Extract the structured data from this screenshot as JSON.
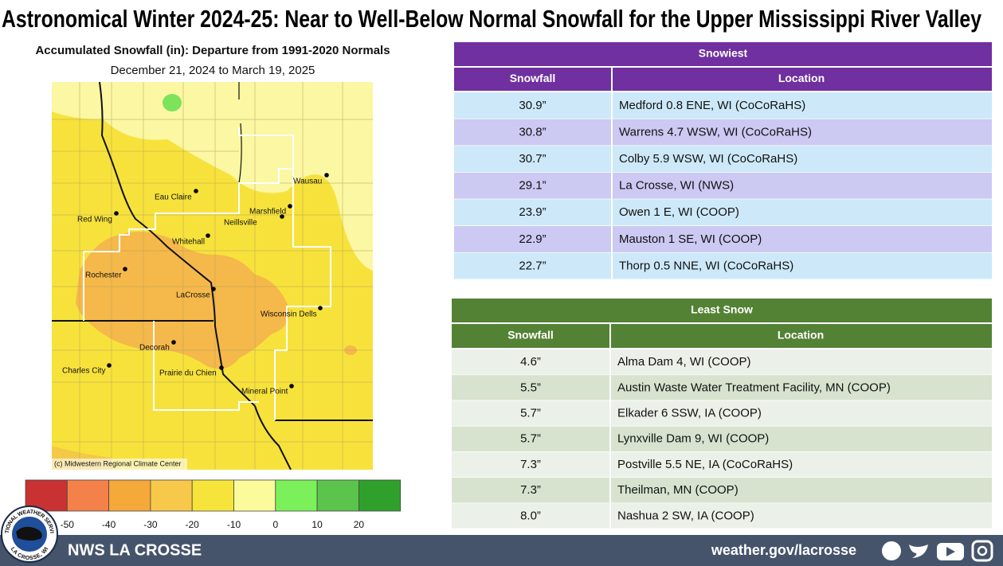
{
  "title": "Astronomical Winter 2024-25: Near to Well-Below Normal Snowfall for the Upper Mississippi River Valley",
  "map": {
    "title": "Accumulated Snowfall (in): Departure from 1991-2020 Normals",
    "subtitle": "December 21, 2024 to March 19, 2025",
    "credit": "(c) Midwestern Regional Climate Center",
    "cities": [
      "Eau Claire",
      "Wausau",
      "Red Wing",
      "Marshfield",
      "Neillsville",
      "Whitehall",
      "Rochester",
      "LaCrosse",
      "Wisconsin Dells",
      "Decorah",
      "Charles City",
      "Prairie du Chien",
      "Mineral Point"
    ]
  },
  "legend": {
    "ticks": [
      -50,
      -40,
      -30,
      -20,
      -10,
      0,
      10,
      20
    ],
    "colors": [
      "#c83232",
      "#f4804a",
      "#f5a93a",
      "#f7c84a",
      "#f7e43a",
      "#fbfb9c",
      "#7cf05a",
      "#5cc44c",
      "#30a02c"
    ]
  },
  "snowiest": {
    "title": "Snowiest",
    "columns": [
      "Snowfall",
      "Location"
    ],
    "rows": [
      [
        "30.9”",
        "Medford 0.8 ENE, WI (CoCoRaHS)"
      ],
      [
        "30.8”",
        "Warrens 4.7 WSW, WI (CoCoRaHS)"
      ],
      [
        "30.7”",
        "Colby 5.9 WSW, WI (CoCoRaHS)"
      ],
      [
        "29.1”",
        "La Crosse, WI (NWS)"
      ],
      [
        "23.9”",
        "Owen 1 E, WI (COOP)"
      ],
      [
        "22.9”",
        "Mauston 1 SE, WI (COOP)"
      ],
      [
        "22.7”",
        "Thorp 0.5 NNE, WI (CoCoRaHS)"
      ]
    ]
  },
  "least_snow": {
    "title": "Least Snow",
    "columns": [
      "Snowfall",
      "Location"
    ],
    "rows": [
      [
        "4.6”",
        "Alma Dam 4, WI (COOP)"
      ],
      [
        "5.5”",
        "Austin Waste Water Treatment Facility, MN (COOP)"
      ],
      [
        "5.7”",
        "Elkader 6 SSW, IA (COOP)"
      ],
      [
        "5.7”",
        "Lynxville Dam 9, WI (COOP)"
      ],
      [
        "7.3”",
        "Postville 5.5 NE, IA (CoCoRaHS)"
      ],
      [
        "7.3”",
        "Theilman, MN (COOP)"
      ],
      [
        "8.0”",
        "Nashua 2 SW, IA (COOP)"
      ]
    ]
  },
  "footer": {
    "logo_top": "NATIONAL WEATHER SERVICE",
    "logo_bottom": "LA CROSSE, WI",
    "office": "NWS LA CROSSE",
    "url": "weather.gov/lacrosse"
  }
}
